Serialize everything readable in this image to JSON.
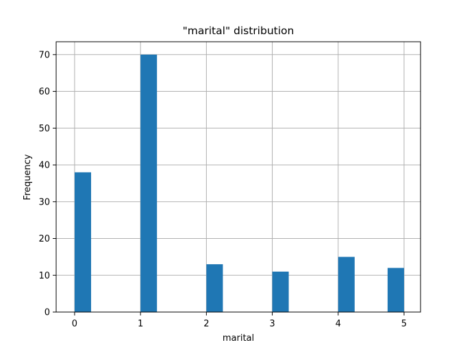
{
  "chart_data": {
    "type": "bar",
    "title": "\"marital\" distribution",
    "xlabel": "marital",
    "ylabel": "Frequency",
    "x_ticks": [
      "0",
      "1",
      "2",
      "3",
      "4",
      "5"
    ],
    "y_ticks": [
      "0",
      "10",
      "20",
      "30",
      "40",
      "50",
      "60",
      "70"
    ],
    "xlim": [
      -0.28,
      5.25
    ],
    "ylim": [
      0,
      73.5
    ],
    "grid": true,
    "bar_color": "#1f77b4",
    "bars": [
      {
        "x_start": 0.0,
        "x_end": 0.25,
        "value": 38
      },
      {
        "x_start": 1.0,
        "x_end": 1.25,
        "value": 70
      },
      {
        "x_start": 2.0,
        "x_end": 2.25,
        "value": 13
      },
      {
        "x_start": 3.0,
        "x_end": 3.25,
        "value": 11
      },
      {
        "x_start": 4.0,
        "x_end": 4.25,
        "value": 15
      },
      {
        "x_start": 4.75,
        "x_end": 5.0,
        "value": 12
      }
    ]
  }
}
